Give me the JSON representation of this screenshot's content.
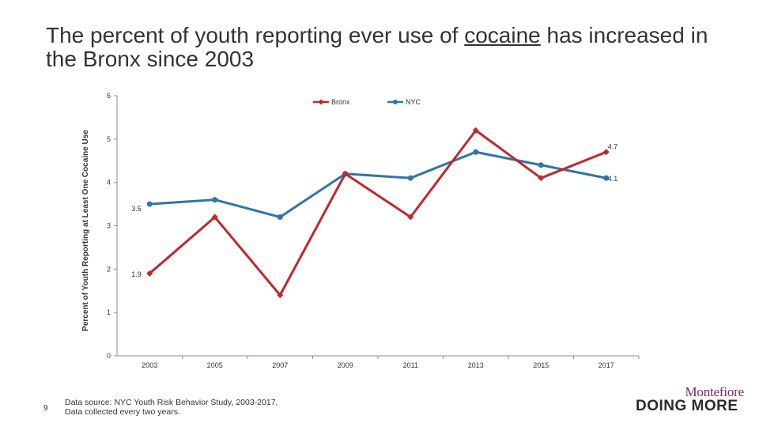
{
  "slide": {
    "title_before": "The percent of youth reporting ever use of ",
    "title_emphasis": "cocaine",
    "title_after": " has increased in the Bronx since 2003",
    "footnote_line1": "Data source: NYC Youth Risk Behavior Study, 2003-2017.",
    "footnote_line2": "Data collected every two years.",
    "page_number": "9",
    "logo_brand": "Montefiore",
    "logo_tagline": "DOING MORE"
  },
  "chart_data": {
    "type": "line",
    "ylabel": "Percent of Youth Reporting at Least One Cocaine Use",
    "xlabel": "",
    "categories": [
      "2003",
      "2005",
      "2007",
      "2009",
      "2011",
      "2013",
      "2015",
      "2017"
    ],
    "ylim": [
      0,
      6
    ],
    "yticks": [
      "0",
      "1",
      "2",
      "3",
      "4",
      "5",
      "6"
    ],
    "legend_position": "top-right",
    "grid": false,
    "series": [
      {
        "name": "Bronx",
        "color": "#c0282d",
        "marker": "diamond",
        "values": [
          1.9,
          3.2,
          1.4,
          4.2,
          3.2,
          5.2,
          4.1,
          4.7
        ],
        "labels": [
          {
            "index": 0,
            "text": "1.9"
          },
          {
            "index": 7,
            "text": "4.7"
          }
        ]
      },
      {
        "name": "NYC",
        "color": "#2e75a8",
        "marker": "circle",
        "values": [
          3.5,
          3.6,
          3.2,
          4.2,
          4.1,
          4.7,
          4.4,
          4.1
        ],
        "labels": [
          {
            "index": 0,
            "text": "3.5"
          },
          {
            "index": 7,
            "text": "4.1"
          }
        ]
      }
    ]
  }
}
